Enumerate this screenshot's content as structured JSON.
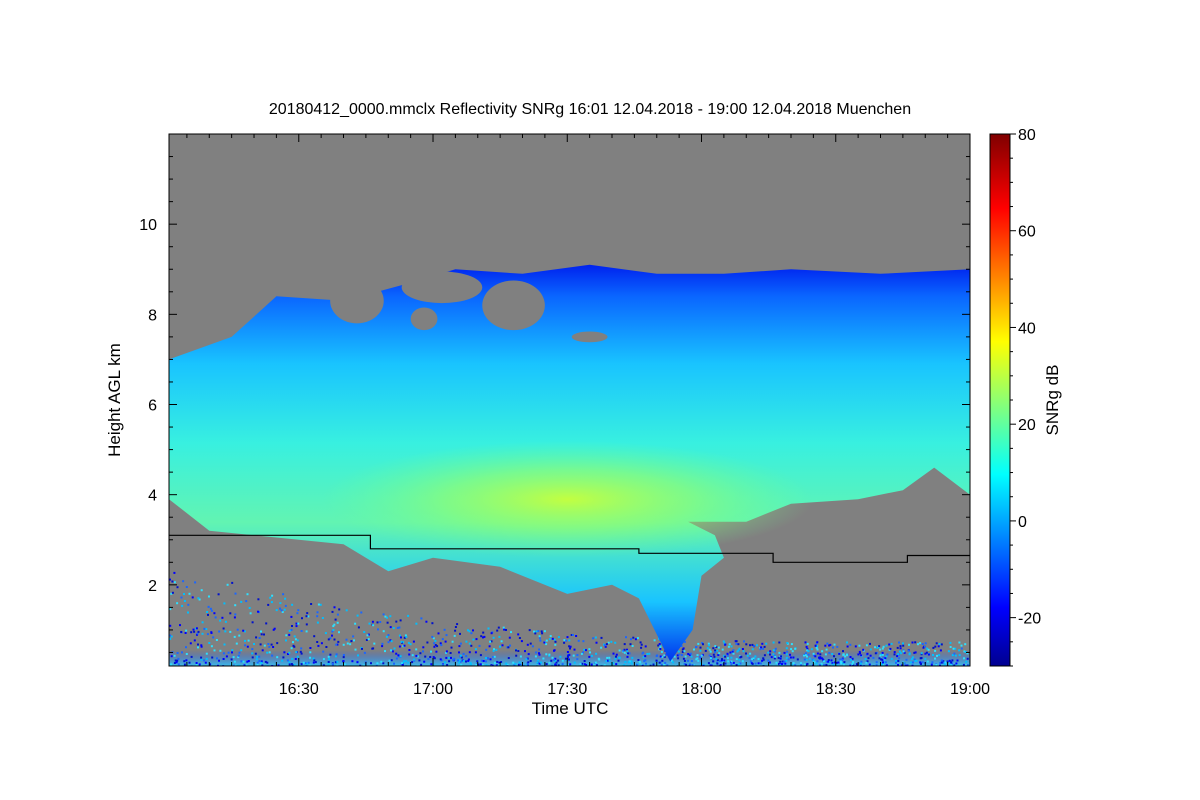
{
  "chart_data": {
    "type": "heatmap",
    "title": "20180412_0000.mmclx Reflectivity SNRg   16:01 12.04.2018 - 19:00 12.04.2018 Muenchen",
    "xlabel": "Time UTC",
    "ylabel": "Height AGL km",
    "colorbar_label": "SNRg dB",
    "x_range": [
      "16:01",
      "19:00"
    ],
    "y_range_km": [
      0.2,
      12.0
    ],
    "x_ticks": [
      {
        "t": "16:30",
        "label": "16:30"
      },
      {
        "t": "17:00",
        "label": "17:00"
      },
      {
        "t": "17:30",
        "label": "17:30"
      },
      {
        "t": "18:00",
        "label": "18:00"
      },
      {
        "t": "18:30",
        "label": "18:30"
      },
      {
        "t": "19:00",
        "label": "19:00"
      }
    ],
    "y_ticks": [
      {
        "v": 2,
        "label": "2"
      },
      {
        "v": 4,
        "label": "4"
      },
      {
        "v": 6,
        "label": "6"
      },
      {
        "v": 8,
        "label": "8"
      },
      {
        "v": 10,
        "label": "10"
      }
    ],
    "colorbar": {
      "range_db": [
        -30,
        80
      ],
      "colormap": "jet",
      "ticks": [
        {
          "v": -20,
          "label": "-20"
        },
        {
          "v": 0,
          "label": "0"
        },
        {
          "v": 20,
          "label": "20"
        },
        {
          "v": 40,
          "label": "40"
        },
        {
          "v": 60,
          "label": "60"
        },
        {
          "v": 80,
          "label": "80"
        }
      ]
    },
    "background_no_signal_color": "#808080",
    "cloud_top_km": [
      {
        "t": "16:01",
        "v": 7.0
      },
      {
        "t": "16:15",
        "v": 7.5
      },
      {
        "t": "16:25",
        "v": 8.4
      },
      {
        "t": "16:40",
        "v": 8.3
      },
      {
        "t": "16:55",
        "v": 8.7
      },
      {
        "t": "17:05",
        "v": 9.0
      },
      {
        "t": "17:20",
        "v": 8.9
      },
      {
        "t": "17:35",
        "v": 9.1
      },
      {
        "t": "17:50",
        "v": 8.9
      },
      {
        "t": "18:05",
        "v": 8.9
      },
      {
        "t": "18:20",
        "v": 9.0
      },
      {
        "t": "18:40",
        "v": 8.9
      },
      {
        "t": "19:00",
        "v": 9.0
      }
    ],
    "cloud_base_km": [
      {
        "t": "16:01",
        "v": 3.9
      },
      {
        "t": "16:10",
        "v": 3.2
      },
      {
        "t": "16:25",
        "v": 3.05
      },
      {
        "t": "16:40",
        "v": 2.9
      },
      {
        "t": "16:50",
        "v": 2.3
      },
      {
        "t": "17:00",
        "v": 2.6
      },
      {
        "t": "17:15",
        "v": 2.4
      },
      {
        "t": "17:30",
        "v": 1.8
      },
      {
        "t": "17:40",
        "v": 2.0
      },
      {
        "t": "17:46",
        "v": 1.7
      },
      {
        "t": "17:53",
        "v": 0.3
      },
      {
        "t": "17:58",
        "v": 1.0
      },
      {
        "t": "18:00",
        "v": 2.2
      },
      {
        "t": "18:05",
        "v": 2.6
      },
      {
        "t": "18:03",
        "v": 3.1
      },
      {
        "t": "17:57",
        "v": 3.4
      },
      {
        "t": "18:10",
        "v": 3.4
      },
      {
        "t": "18:20",
        "v": 3.8
      },
      {
        "t": "18:35",
        "v": 3.9
      },
      {
        "t": "18:45",
        "v": 4.1
      },
      {
        "t": "18:52",
        "v": 4.6
      },
      {
        "t": "19:00",
        "v": 4.0
      }
    ],
    "peak_region": {
      "t": "17:30",
      "v": 3.9,
      "snrg_db": 30
    },
    "melting_layer_km": [
      {
        "t": "16:01",
        "v": 3.1
      },
      {
        "t": "16:46",
        "v": 3.1
      },
      {
        "t": "16:46",
        "v": 2.8
      },
      {
        "t": "17:46",
        "v": 2.8
      },
      {
        "t": "17:46",
        "v": 2.7
      },
      {
        "t": "18:16",
        "v": 2.7
      },
      {
        "t": "18:16",
        "v": 2.5
      },
      {
        "t": "18:46",
        "v": 2.5
      },
      {
        "t": "18:46",
        "v": 2.65
      },
      {
        "t": "19:00",
        "v": 2.65
      }
    ]
  }
}
